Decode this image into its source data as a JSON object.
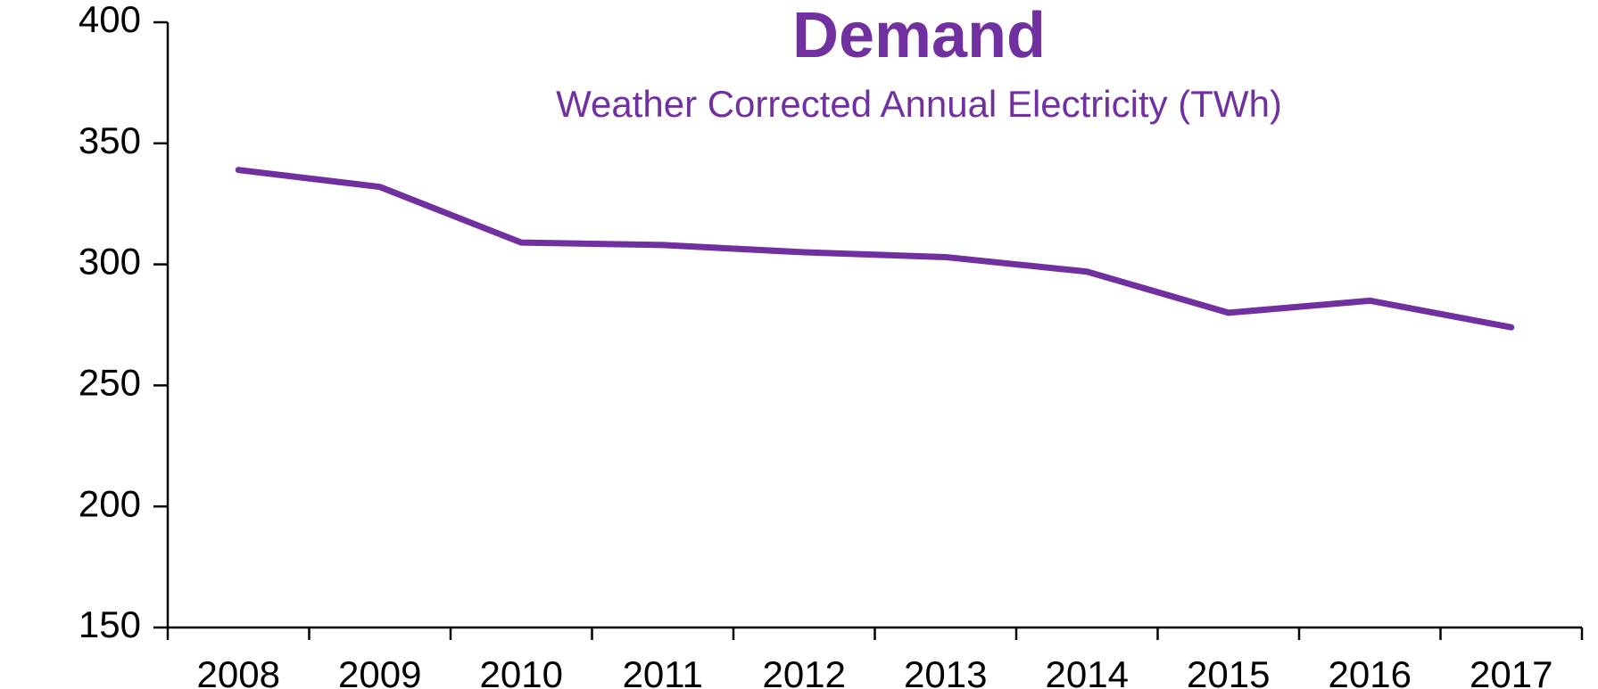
{
  "chart_data": {
    "type": "line",
    "title": "Demand",
    "subtitle": "Weather Corrected Annual Electricity (TWh)",
    "categories": [
      "2008",
      "2009",
      "2010",
      "2011",
      "2012",
      "2013",
      "2014",
      "2015",
      "2016",
      "2017"
    ],
    "series": [
      {
        "name": "Demand",
        "color": "#7030a0",
        "values": [
          339,
          332,
          309,
          308,
          305,
          303,
          297,
          280,
          285,
          274
        ]
      }
    ],
    "ylim": [
      150,
      400
    ],
    "yticks": [
      150,
      200,
      250,
      300,
      350,
      400
    ],
    "grid": false
  }
}
